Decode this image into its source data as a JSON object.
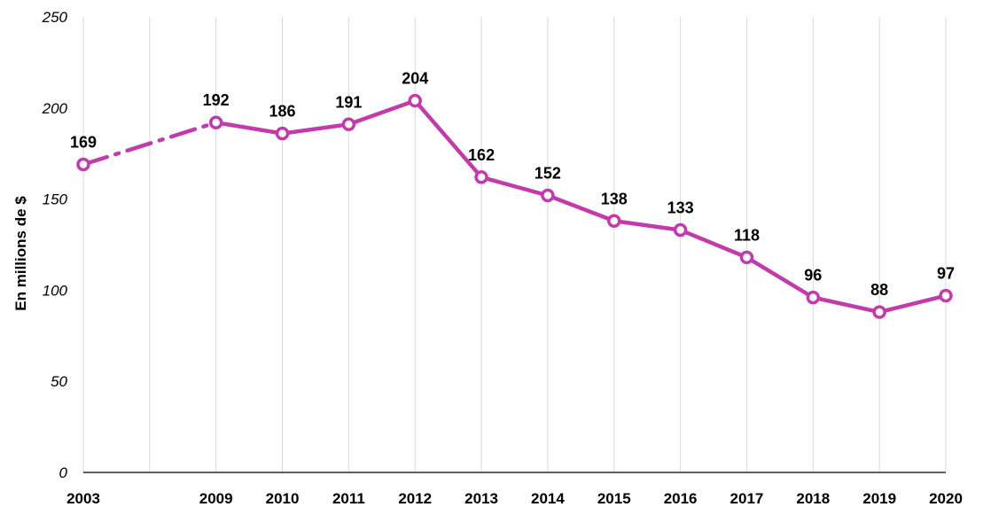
{
  "chart_data": {
    "type": "line",
    "title": "",
    "xlabel": "",
    "ylabel": "En millions de $",
    "ylim": [
      0,
      250
    ],
    "yticks": [
      0,
      50,
      100,
      150,
      200,
      250
    ],
    "grid": "vertical",
    "categories": [
      "2003",
      "",
      "2009",
      "2010",
      "2011",
      "2012",
      "2013",
      "2014",
      "2015",
      "2016",
      "2017",
      "2018",
      "2019",
      "2020"
    ],
    "series": [
      {
        "color": "#c03caa",
        "values": [
          169,
          null,
          192,
          186,
          191,
          204,
          162,
          152,
          138,
          133,
          118,
          96,
          88,
          97
        ],
        "dashed_gap": [
          0,
          2
        ]
      }
    ]
  }
}
